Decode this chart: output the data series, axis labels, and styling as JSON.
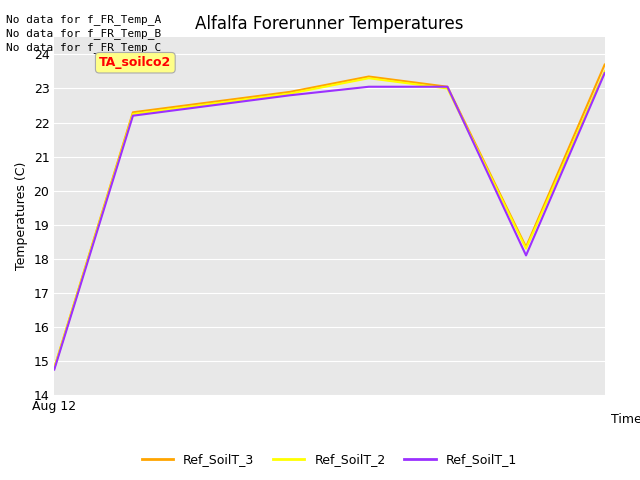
{
  "title": "Alfalfa Forerunner Temperatures",
  "ylabel": "Temperatures (C)",
  "xlabel": "Time",
  "fig_facecolor": "#ffffff",
  "plot_bg_color": "#e8e8e8",
  "ylim": [
    14.0,
    24.5
  ],
  "yticks": [
    14.0,
    15.0,
    16.0,
    17.0,
    18.0,
    19.0,
    20.0,
    21.0,
    22.0,
    23.0,
    24.0
  ],
  "x": [
    0,
    1,
    2,
    3,
    4,
    5,
    6,
    7
  ],
  "Ref_SoilT_3": [
    14.8,
    22.3,
    22.6,
    22.9,
    23.35,
    23.05,
    18.35,
    23.7
  ],
  "Ref_SoilT_2": [
    14.8,
    22.25,
    22.55,
    22.85,
    23.3,
    23.0,
    18.3,
    23.5
  ],
  "Ref_SoilT_1": [
    14.75,
    22.2,
    22.5,
    22.8,
    23.05,
    23.05,
    18.1,
    23.45
  ],
  "color_3": "#FFA500",
  "color_2": "#FFFF00",
  "color_1": "#9B30FF",
  "annotation_texts": [
    "No data for f_FR_Temp_A",
    "No data for f_FR_Temp_B",
    "No data for f_FR_Temp_C"
  ],
  "annotation_box_text": "TA_soilco2",
  "xticklabel": "Aug 12",
  "title_fontsize": 12,
  "axis_fontsize": 9,
  "legend_fontsize": 9,
  "annot_fontsize": 8
}
